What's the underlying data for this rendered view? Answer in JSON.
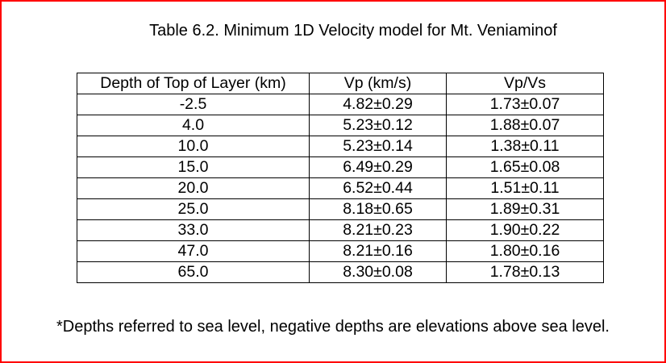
{
  "title": "Table 6.2. Minimum 1D Velocity model for Mt. Veniaminof",
  "table": {
    "headers": [
      "Depth of Top of Layer (km)",
      "Vp (km/s)",
      "Vp/Vs"
    ],
    "rows": [
      [
        "-2.5",
        "4.82±0.29",
        "1.73±0.07"
      ],
      [
        "4.0",
        "5.23±0.12",
        "1.88±0.07"
      ],
      [
        "10.0",
        "5.23±0.14",
        "1.38±0.11"
      ],
      [
        "15.0",
        "6.49±0.29",
        "1.65±0.08"
      ],
      [
        "20.0",
        "6.52±0.44",
        "1.51±0.11"
      ],
      [
        "25.0",
        "8.18±0.65",
        "1.89±0.31"
      ],
      [
        "33.0",
        "8.21±0.23",
        "1.90±0.22"
      ],
      [
        "47.0",
        "8.21±0.16",
        "1.80±0.16"
      ],
      [
        "65.0",
        "8.30±0.08",
        "1.78±0.13"
      ]
    ]
  },
  "footnote": "*Depths referred to sea level, negative depths are elevations above sea level.",
  "colors": {
    "frame": "#ff0000",
    "text": "#000000",
    "background": "#ffffff"
  }
}
